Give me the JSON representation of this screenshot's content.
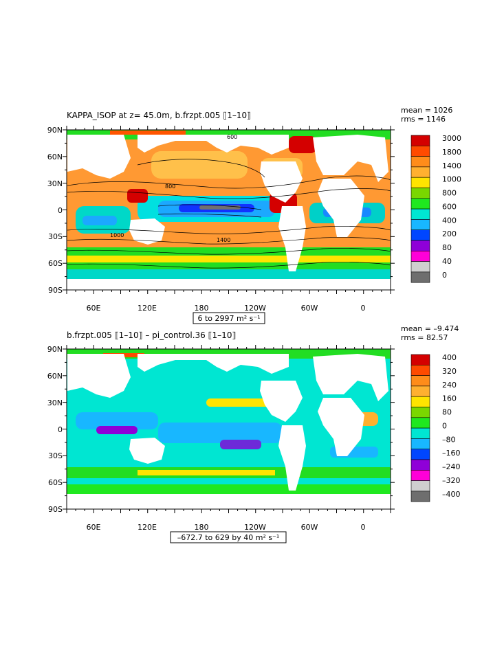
{
  "panels": [
    {
      "title": "KAPPA_ISOP at z=  45.0m, b.frzpt.005 ⟦1–10⟧",
      "stats": {
        "mean": "mean = 1026",
        "rms": "rms = 1146"
      },
      "range_label": "6 to 2997 m² s⁻¹",
      "lat_labels": [
        "90N",
        "60N",
        "30N",
        "0",
        "30S",
        "60S",
        "90S"
      ],
      "lon_labels": [
        "60E",
        "120E",
        "180",
        "120W",
        "60W",
        "0"
      ],
      "colorbar": {
        "labels": [
          "3000",
          "1800",
          "1400",
          "1000",
          "800",
          "600",
          "400",
          "200",
          "80",
          "40",
          "0"
        ],
        "colors": [
          "#d40000",
          "#ff4a00",
          "#ff8c1a",
          "#ffb030",
          "#ffe400",
          "#7ad700",
          "#1fe81f",
          "#00e6d2",
          "#18b7ff",
          "#0046ff",
          "#8f00d8",
          "#ff00d8",
          "#cfcfcf",
          "#6e6e6e"
        ]
      },
      "contour_labels": [
        "600",
        "1000",
        "1400",
        "800"
      ]
    },
    {
      "title": "b.frzpt.005 ⟦1–10⟧ – pi_control.36 ⟦1–10⟧",
      "stats": {
        "mean": "mean = –9.474",
        "rms": "rms = 82.57"
      },
      "range_label": "–672.7 to 629 by 40 m² s⁻¹",
      "lat_labels": [
        "90N",
        "60N",
        "30N",
        "0",
        "30S",
        "60S",
        "90S"
      ],
      "lon_labels": [
        "60E",
        "120E",
        "180",
        "120W",
        "60W",
        "0"
      ],
      "colorbar": {
        "labels": [
          "400",
          "320",
          "240",
          "160",
          "80",
          "0",
          "–80",
          "–160",
          "–240",
          "–320",
          "–400"
        ],
        "colors": [
          "#d40000",
          "#ff4a00",
          "#ff8c1a",
          "#ffb030",
          "#ffe400",
          "#7ad700",
          "#1fe81f",
          "#00e6d2",
          "#18b7ff",
          "#0046ff",
          "#8f00d8",
          "#ff00d8",
          "#cfcfcf",
          "#6e6e6e"
        ]
      }
    }
  ]
}
